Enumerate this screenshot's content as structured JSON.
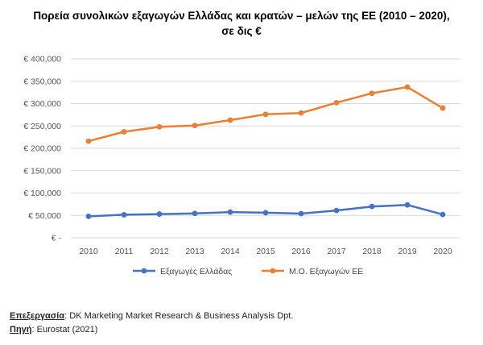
{
  "title_line1": "Πορεία συνολικών εξαγωγών Ελλάδας και κρατών – μελών της ΕΕ  (2010 – 2020),",
  "title_line2": "σε δις €",
  "chart_data": {
    "type": "line",
    "title": "Πορεία συνολικών εξαγωγών Ελλάδας και κρατών – μελών της ΕΕ  (2010 – 2020), σε δις €",
    "categories": [
      "2010",
      "2011",
      "2012",
      "2013",
      "2014",
      "2015",
      "2016",
      "2017",
      "2018",
      "2019",
      "2020"
    ],
    "y_ticks": [
      "€ -",
      "€ 50,000",
      "€ 100,000",
      "€ 150,000",
      "€ 200,000",
      "€ 250,000",
      "€ 300,000",
      "€ 350,000",
      "€ 400,000"
    ],
    "ylim": [
      0,
      400000
    ],
    "grid": true,
    "legend": "bottom",
    "series": [
      {
        "name": "Εξαγωγές Ελλάδας",
        "color": "#4472C4",
        "values": [
          48000,
          51500,
          53000,
          54500,
          57500,
          56000,
          54000,
          61000,
          70000,
          73500,
          52000
        ]
      },
      {
        "name": "Μ.Ο. Εξαγωγών ΕΕ",
        "color": "#ED7D31",
        "values": [
          216000,
          237000,
          248000,
          251000,
          263000,
          276000,
          279000,
          302000,
          323000,
          337000,
          290000
        ]
      }
    ]
  },
  "footer": {
    "processing_label": "Επεξεργασία",
    "processing_value": ":  DK Marketing Market Research & Business Analysis Dpt.",
    "source_label": "Πηγή",
    "source_value": ": Eurostat (2021)"
  }
}
